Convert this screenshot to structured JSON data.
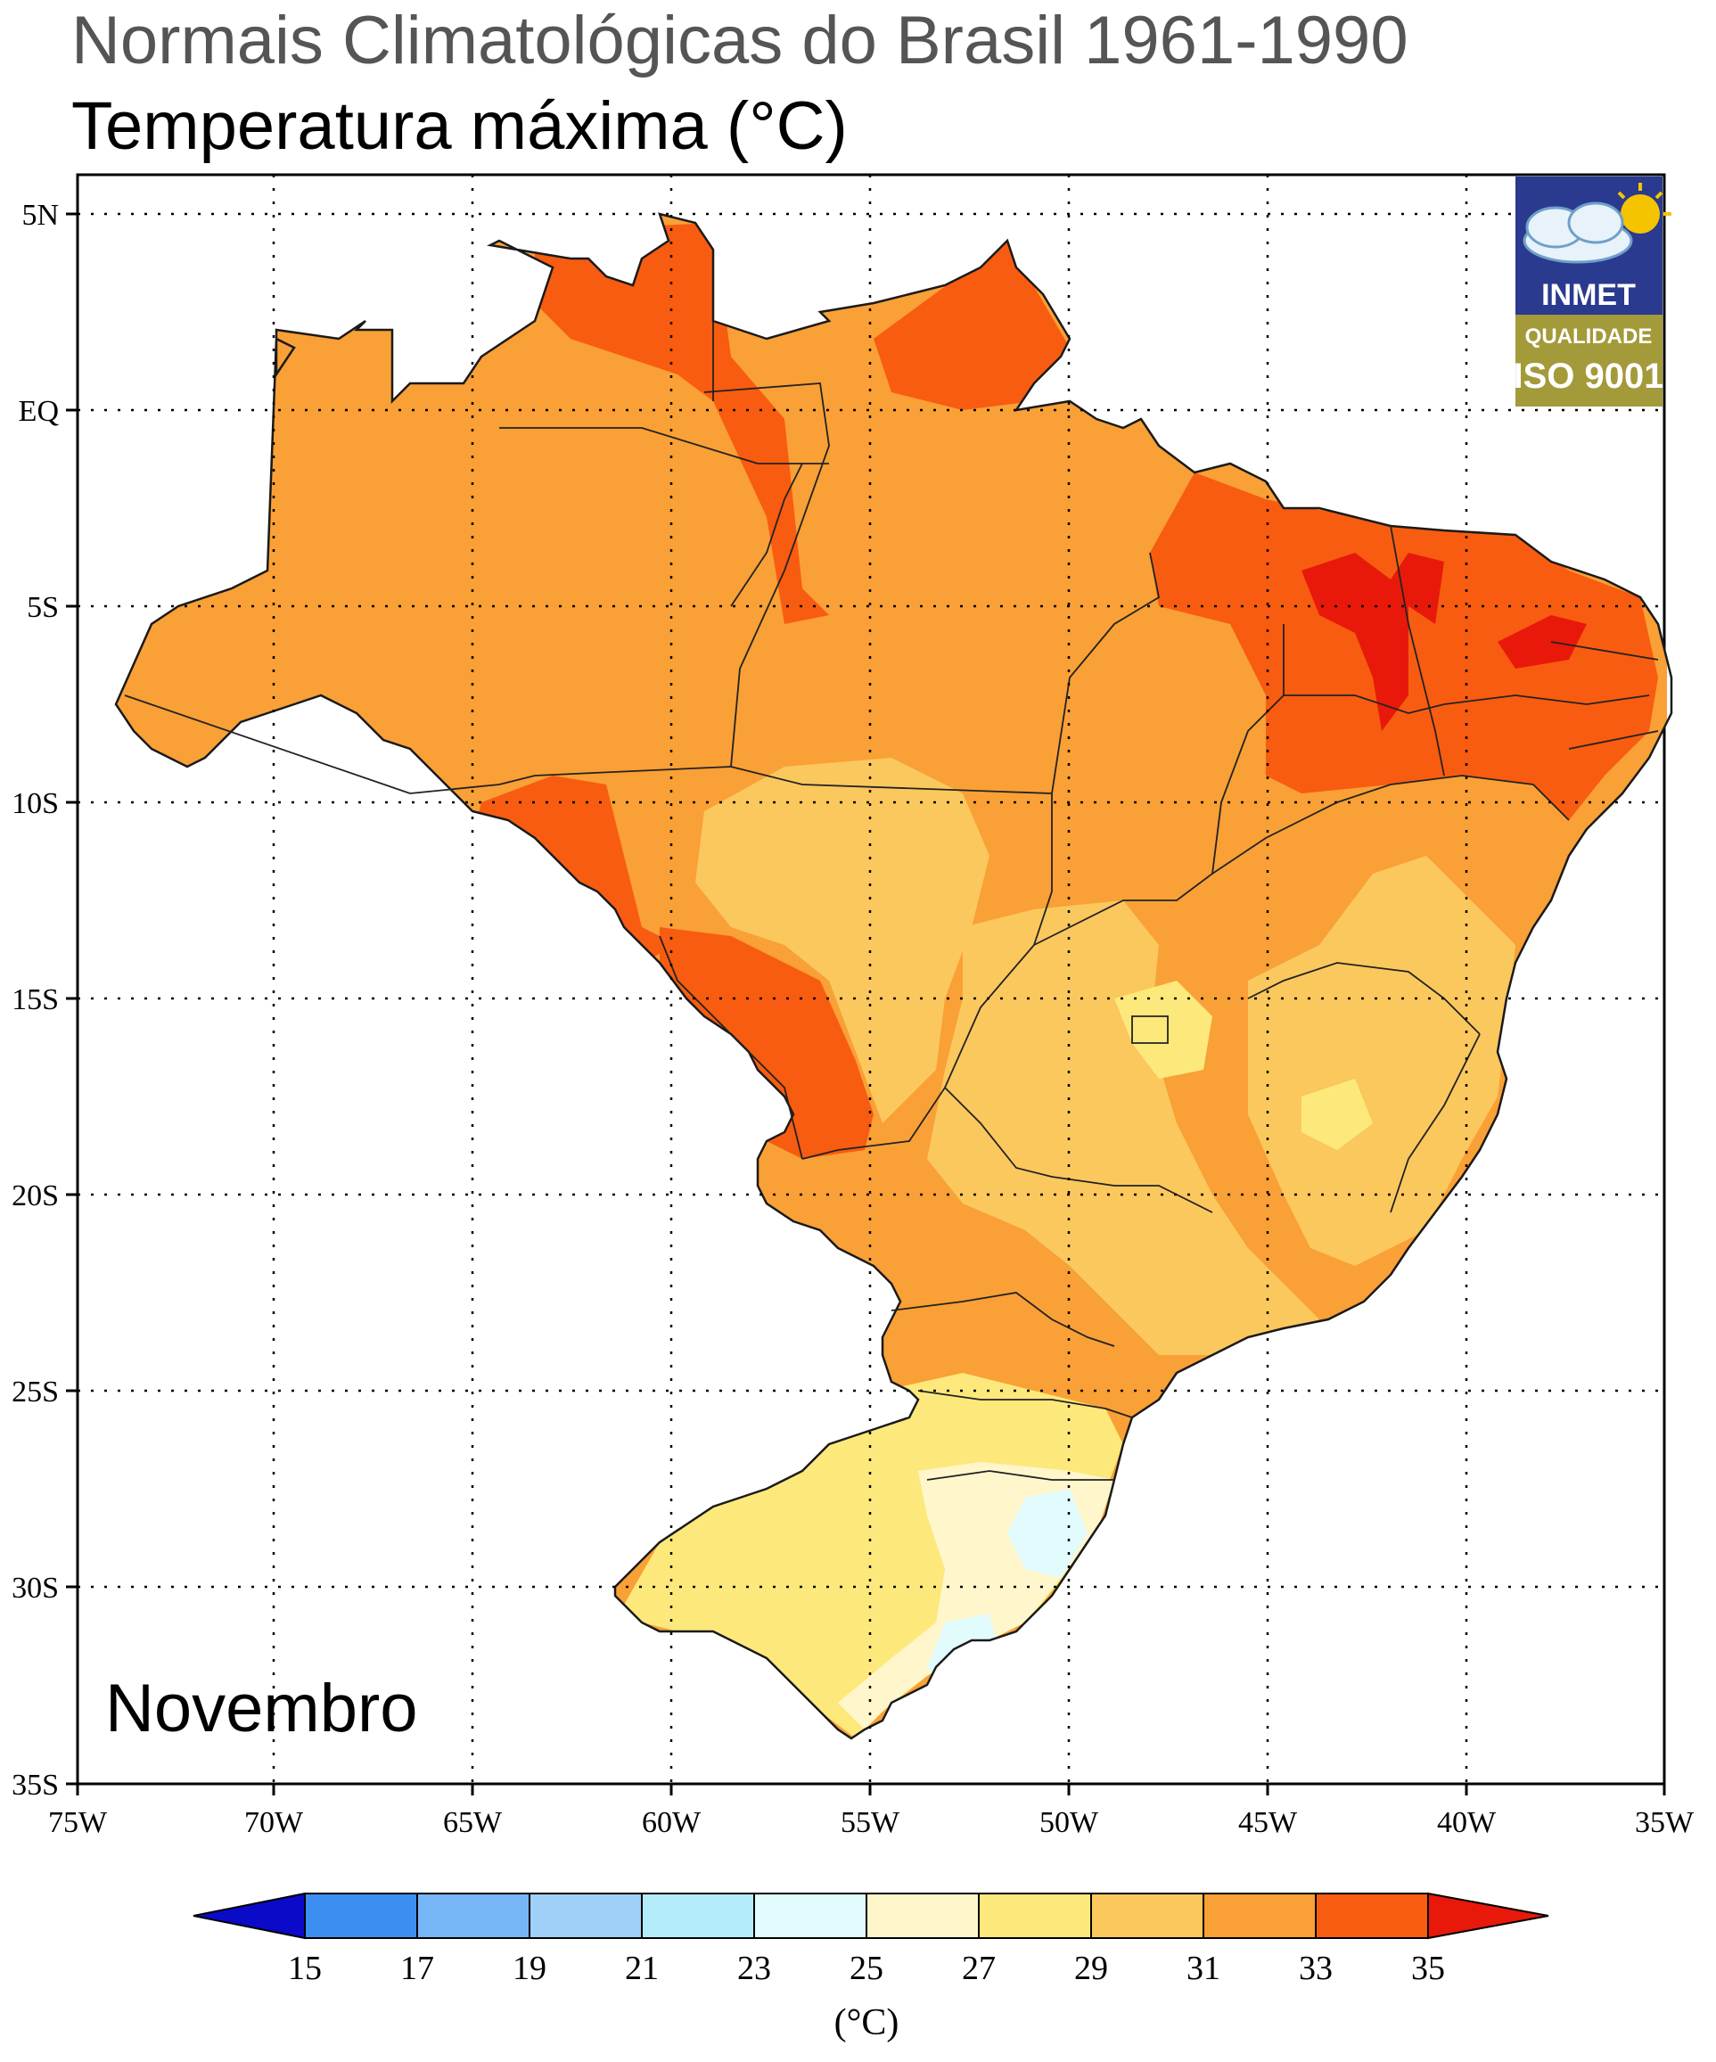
{
  "title": "Normais Climatológicas do Brasil 1961-1990",
  "subtitle": "Temperatura máxima (°C)",
  "month_label": "Novembro",
  "logo": {
    "name": "INMET",
    "quality_line1": "QUALIDADE",
    "quality_line2": "ISO 9001",
    "icon": "cloud-sun-icon",
    "colors": {
      "top": "#2a3a8f",
      "bottom": "#a39a3a"
    }
  },
  "axes": {
    "lat_labels": [
      "5N",
      "EQ",
      "5S",
      "10S",
      "15S",
      "20S",
      "25S",
      "30S",
      "35S"
    ],
    "lon_labels": [
      "75W",
      "70W",
      "65W",
      "60W",
      "55W",
      "50W",
      "45W",
      "40W",
      "35W"
    ],
    "lat_range": [
      -35,
      5
    ],
    "lon_range": [
      -75,
      -35
    ],
    "grid": "dotted"
  },
  "colorbar": {
    "ticks": [
      "15",
      "17",
      "19",
      "21",
      "23",
      "25",
      "27",
      "29",
      "31",
      "33",
      "35"
    ],
    "unit": "(°C)",
    "colors": [
      "#0a0ac8",
      "#3c8ff0",
      "#76b6f7",
      "#9fd0f8",
      "#b3ecf8",
      "#e2fbfc",
      "#fff6cc",
      "#fde97b",
      "#fbc85e",
      "#f9a036",
      "#f85c10",
      "#e8190a"
    ]
  },
  "map_colors": {
    "c27": "#fff6cc",
    "c29": "#fde97b",
    "c31": "#fbc85e",
    "c33": "#f9a036",
    "c35": "#f85c10",
    "c36": "#e8190a",
    "c25": "#e2fbfc"
  }
}
